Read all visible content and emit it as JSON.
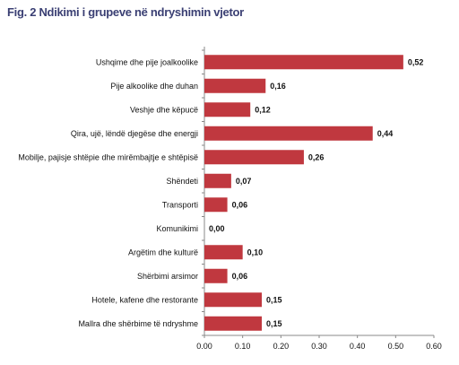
{
  "chart_data": {
    "type": "bar",
    "orientation": "horizontal",
    "title": "Fig. 2 Ndikimi i grupeve në ndryshimin vjetor",
    "categories": [
      "Ushqime dhe pije joalkoolike",
      "Pije alkoolike dhe duhan",
      "Veshje dhe këpucë",
      "Qira, ujë, lëndë djegëse dhe energji",
      "Mobilje, pajisje shtëpie dhe mirëmbajtje e shtëpisë",
      "Shëndeti",
      "Transporti",
      "Komunikimi",
      "Argëtim dhe kulturë",
      "Shërbimi arsimor",
      "Hotele, kafene dhe restorante",
      "Mallra dhe shërbime të ndryshme"
    ],
    "values": [
      0.52,
      0.16,
      0.12,
      0.44,
      0.26,
      0.07,
      0.06,
      0.0,
      0.1,
      0.06,
      0.15,
      0.15
    ],
    "value_labels": [
      "0,52",
      "0,16",
      "0,12",
      "0,44",
      "0,26",
      "0,07",
      "0,06",
      "0,00",
      "0,10",
      "0,06",
      "0,15",
      "0,15"
    ],
    "xlim": [
      0,
      0.6
    ],
    "x_ticks": [
      "0.00",
      "0.10",
      "0.20",
      "0.30",
      "0.40",
      "0.50",
      "0.60"
    ],
    "bar_color": "#c0383f",
    "title_color": "#3a3f73",
    "grid": false,
    "legend": "none"
  }
}
